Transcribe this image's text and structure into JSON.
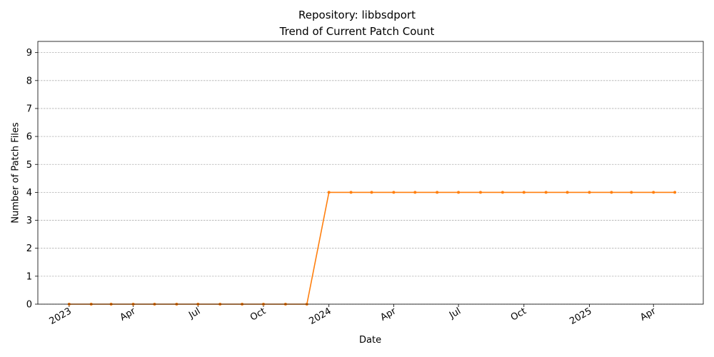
{
  "chart_data": {
    "type": "line",
    "title": "Repository: libbsdport",
    "subtitle": "Trend of Current Patch Count",
    "xlabel": "Date",
    "ylabel": "Number of Patch Files",
    "ylim": [
      0,
      9.4
    ],
    "xlim": [
      "2022-11-18",
      "2025-06-10"
    ],
    "grid": "horizontal dashed",
    "yticks": [
      "0",
      "1",
      "2",
      "3",
      "4",
      "5",
      "6",
      "7",
      "8",
      "9"
    ],
    "xticks": [
      {
        "label": "2023",
        "date": "2023-01-01"
      },
      {
        "label": "Apr",
        "date": "2023-04-01"
      },
      {
        "label": "Jul",
        "date": "2023-07-01"
      },
      {
        "label": "Oct",
        "date": "2023-10-01"
      },
      {
        "label": "2024",
        "date": "2024-01-01"
      },
      {
        "label": "Apr",
        "date": "2024-04-01"
      },
      {
        "label": "Jul",
        "date": "2024-07-01"
      },
      {
        "label": "Oct",
        "date": "2024-10-01"
      },
      {
        "label": "2025",
        "date": "2025-01-01"
      },
      {
        "label": "Apr",
        "date": "2025-04-01"
      }
    ],
    "series": [
      {
        "color": "#ff7f0e",
        "x": [
          "2023-01-01",
          "2023-02-01",
          "2023-03-01",
          "2023-04-01",
          "2023-05-01",
          "2023-06-01",
          "2023-07-01",
          "2023-08-01",
          "2023-09-01",
          "2023-10-01",
          "2023-11-01",
          "2023-12-01",
          "2024-01-01",
          "2024-02-01",
          "2024-03-01",
          "2024-04-01",
          "2024-05-01",
          "2024-06-01",
          "2024-07-01",
          "2024-08-01",
          "2024-09-01",
          "2024-10-01",
          "2024-11-01",
          "2024-12-01",
          "2025-01-01",
          "2025-02-01",
          "2025-03-01",
          "2025-04-01",
          "2025-05-01"
        ],
        "values": [
          0,
          0,
          0,
          0,
          0,
          0,
          0,
          0,
          0,
          0,
          0,
          0,
          4,
          4,
          4,
          4,
          4,
          4,
          4,
          4,
          4,
          4,
          4,
          4,
          4,
          4,
          4,
          4,
          4
        ]
      }
    ]
  }
}
